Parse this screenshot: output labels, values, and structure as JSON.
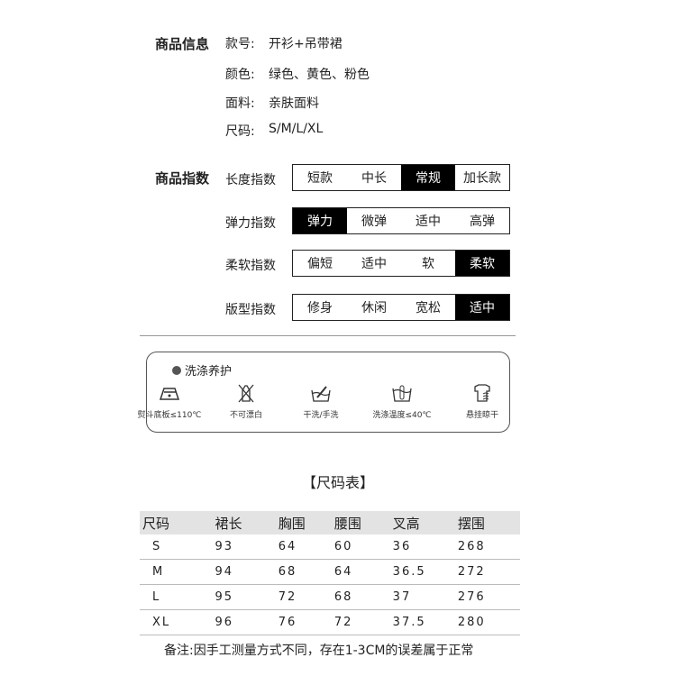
{
  "info": {
    "title": "商品信息",
    "rows": [
      {
        "label": "款号:",
        "value": "开衫+吊带裙"
      },
      {
        "label": "颜色:",
        "value": "绿色、黄色、粉色"
      },
      {
        "label": "面料:",
        "value": "亲肤面料"
      },
      {
        "label": "尺码:",
        "value": "S/M/L/XL"
      }
    ]
  },
  "index": {
    "title": "商品指数",
    "rows": [
      {
        "label": "长度指数",
        "options": [
          "短款",
          "中长",
          "常规",
          "加长款"
        ],
        "selected": 2
      },
      {
        "label": "弹力指数",
        "options": [
          "弹力",
          "微弹",
          "适中",
          "高弹"
        ],
        "selected": 0
      },
      {
        "label": "柔软指数",
        "options": [
          "偏短",
          "适中",
          "软",
          "柔软"
        ],
        "selected": 3
      },
      {
        "label": "版型指数",
        "options": [
          "修身",
          "休闲",
          "宽松",
          "适中"
        ],
        "selected": 3
      }
    ]
  },
  "care": {
    "title": "洗涤养护",
    "items": [
      {
        "icon": "iron-icon",
        "text": "熨斗底板≤110℃"
      },
      {
        "icon": "no-bleach-icon",
        "text": "不可漂白"
      },
      {
        "icon": "hand-wash-icon",
        "text": "干洗/手洗"
      },
      {
        "icon": "wash-temp-icon",
        "text": "洗涤温度≤40℃"
      },
      {
        "icon": "hang-dry-icon",
        "text": "悬挂晾干"
      }
    ]
  },
  "size": {
    "title": "【尺码表】",
    "headers": [
      "尺码",
      "裙长",
      "胸围",
      "腰围",
      "叉高",
      "摆围"
    ],
    "rows": [
      [
        "S",
        "93",
        "64",
        "60",
        "36",
        "268"
      ],
      [
        "M",
        "94",
        "68",
        "64",
        "36.5",
        "272"
      ],
      [
        "L",
        "95",
        "72",
        "68",
        "37",
        "276"
      ],
      [
        "XL",
        "96",
        "76",
        "72",
        "37.5",
        "280"
      ]
    ],
    "note": "备注:因手工测量方式不同，存在1-3CM的误差属于正常"
  }
}
